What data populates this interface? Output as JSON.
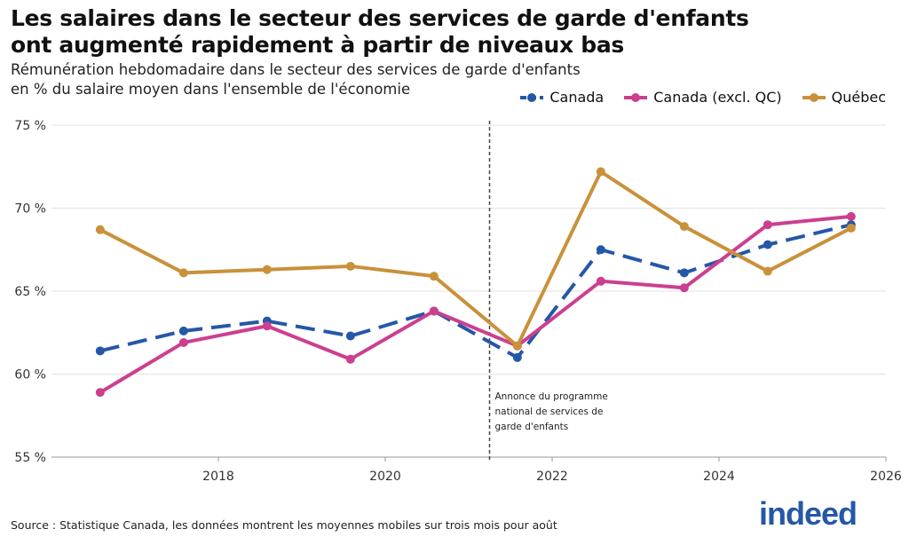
{
  "title_line1": "Les salaires dans le secteur des services de garde d'enfants",
  "title_line2": "ont augmenté rapidement à partir de niveaux bas",
  "subtitle_line1": "Rémunération hebdomadaire dans le secteur des services de garde d'enfants",
  "subtitle_line2": "en % du salaire moyen dans l'ensemble de l'économie",
  "source": "Source : Statistique Canada, les données montrent les moyennes mobiles sur trois mois pour août",
  "logo": "indeed",
  "chart_data": {
    "type": "line",
    "x": [
      "2016-08",
      "2017-08",
      "2018-08",
      "2019-08",
      "2020-08",
      "2021-08",
      "2022-08",
      "2023-08",
      "2024-08",
      "2025-08"
    ],
    "ylim": [
      55,
      75
    ],
    "xlim": [
      2016,
      2026
    ],
    "y_ticks": [
      "55 %",
      "60 %",
      "65 %",
      "70 %",
      "75 %"
    ],
    "x_ticks": [
      "2018",
      "2020",
      "2022",
      "2024",
      "2026"
    ],
    "grid": "horizontal",
    "legend_position": "top-right",
    "series": [
      {
        "name": "Canada",
        "color": "#2557a7",
        "style": "dashed",
        "values": [
          61.4,
          62.6,
          63.2,
          62.3,
          63.8,
          61.0,
          67.5,
          66.1,
          67.8,
          69.0
        ]
      },
      {
        "name": "Canada (excl. QC)",
        "color": "#cc3f8f",
        "style": "solid",
        "values": [
          58.9,
          61.9,
          62.9,
          60.9,
          63.8,
          61.7,
          65.6,
          65.2,
          69.0,
          69.5
        ]
      },
      {
        "name": "Québec",
        "color": "#c9913a",
        "style": "solid",
        "values": [
          68.7,
          66.1,
          66.3,
          66.5,
          65.9,
          61.7,
          72.2,
          68.9,
          66.2,
          68.8
        ]
      }
    ],
    "annotation": {
      "x": "2021-04",
      "lines": [
        "Annonce du programme",
        "national de services de",
        "garde d'enfants"
      ]
    }
  }
}
